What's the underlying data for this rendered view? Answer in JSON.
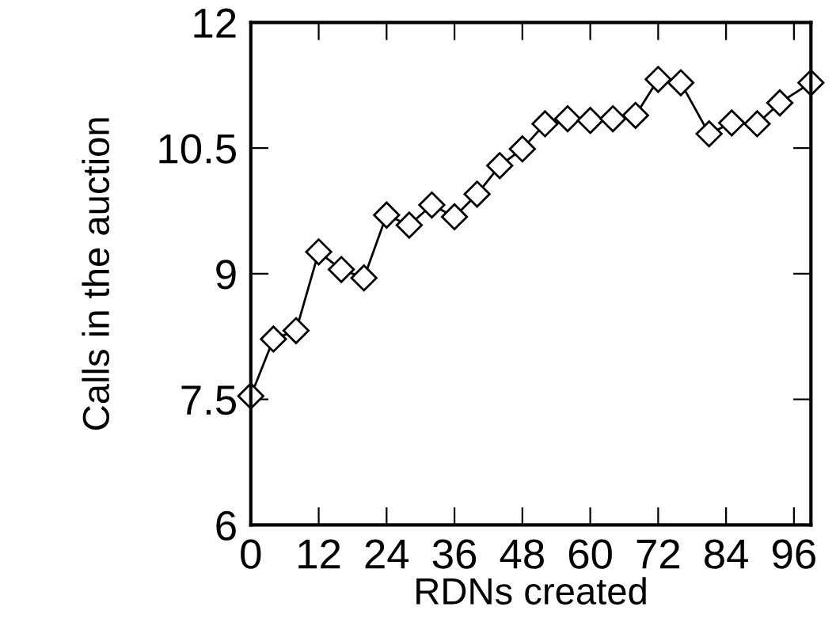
{
  "chart_data": {
    "type": "line",
    "xlabel": "RDNs created",
    "ylabel": "Calls in the auction",
    "x": [
      0,
      4,
      8,
      12,
      16,
      20,
      24,
      28,
      32,
      36,
      40,
      44,
      48,
      52,
      56,
      60,
      64,
      68,
      72,
      76,
      81,
      85,
      89.5,
      93.5,
      99
    ],
    "series": [
      {
        "color": "#000000",
        "values": [
          7.54,
          8.22,
          8.32,
          9.26,
          9.05,
          8.95,
          9.7,
          9.58,
          9.82,
          9.68,
          9.95,
          10.29,
          10.49,
          10.79,
          10.85,
          10.83,
          10.85,
          10.89,
          11.32,
          11.28,
          10.67,
          10.8,
          10.79,
          11.04,
          11.28
        ]
      }
    ],
    "xlim": [
      0,
      99
    ],
    "xticks": [
      0,
      12,
      24,
      36,
      48,
      60,
      72,
      84,
      96
    ],
    "ylim": [
      6,
      12
    ],
    "yticks": [
      6,
      7.5,
      9,
      10.5,
      12
    ],
    "marker": "diamond",
    "line_style": "solid",
    "grid": false,
    "legend": false
  }
}
